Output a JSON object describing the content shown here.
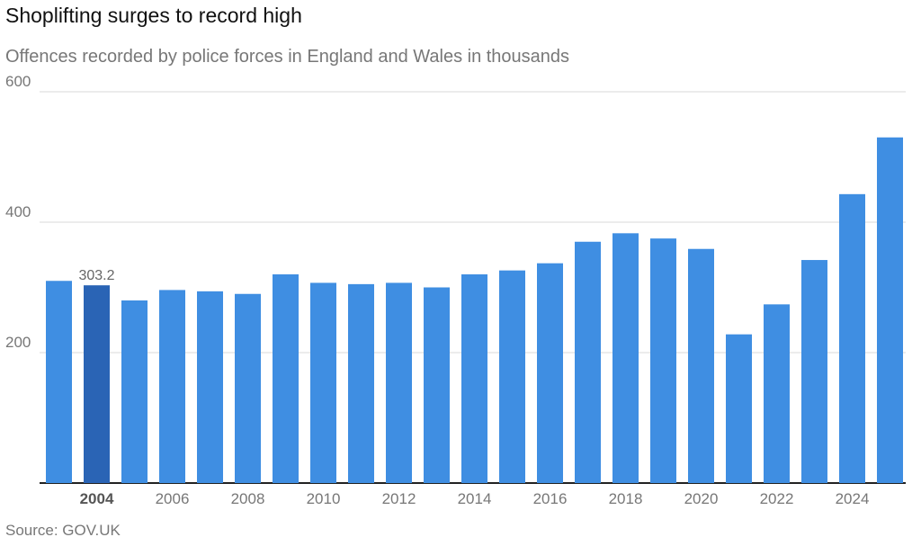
{
  "header": {
    "title": "Shoplifting surges to record high",
    "subtitle": "Offences recorded by police forces in England and Wales in thousands"
  },
  "footer": {
    "source": "Source: GOV.UK"
  },
  "colors": {
    "bar": "#3f8ee2",
    "highlight": "#2a64b5",
    "grid": "#d9d9d9",
    "axis": "#222222",
    "tick": "#777777",
    "tick_highlight": "#555555"
  },
  "chart_data": {
    "type": "bar",
    "title": "Shoplifting surges to record high",
    "subtitle": "Offences recorded by police forces in England and Wales in thousands",
    "categories": [
      "2003",
      "2004",
      "2005",
      "2006",
      "2007",
      "2008",
      "2009",
      "2010",
      "2011",
      "2012",
      "2013",
      "2014",
      "2015",
      "2016",
      "2017",
      "2018",
      "2019",
      "2020",
      "2021",
      "2022",
      "2023",
      "2024",
      "2025"
    ],
    "series": [
      {
        "values": [
          310,
          303.2,
          280,
          296,
          294,
          290,
          320,
          307,
          305,
          307,
          300,
          320,
          326,
          337,
          370,
          383,
          375,
          359,
          228,
          274,
          342,
          443,
          530
        ]
      }
    ],
    "highlight_index": 1,
    "data_label": "303.2",
    "x_tick_labels": [
      "2004",
      "2006",
      "2008",
      "2010",
      "2012",
      "2014",
      "2016",
      "2018",
      "2020",
      "2022",
      "2024"
    ],
    "y_ticks": [
      200,
      400,
      600
    ],
    "ylim": [
      0,
      600
    ],
    "grid": true,
    "xlabel": "",
    "ylabel": ""
  }
}
